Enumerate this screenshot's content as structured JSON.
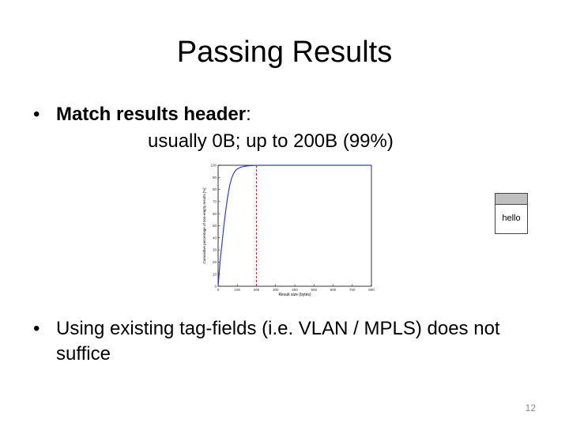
{
  "slide": {
    "title": "Passing Results",
    "bullet_char": "•",
    "bullet1_bold": "Match results header",
    "bullet1_colon": ":",
    "bullet1_detail": "usually 0B; up to 200B (99%)",
    "bullet2": "Using existing tag-fields (i.e. VLAN / MPLS) does not suffice",
    "page_number": "12"
  },
  "note": {
    "label": "hello"
  },
  "chart_data": {
    "type": "line",
    "xlabel": "Result size (bytes)",
    "ylabel": "Cumulative percentage of non-empty results [%]",
    "xlim": [
      0,
      800
    ],
    "ylim": [
      0,
      100
    ],
    "x_ticks": [
      "0",
      "100",
      "200",
      "300",
      "400",
      "500",
      "600",
      "700",
      "800"
    ],
    "y_ticks": [
      "0",
      "10",
      "20",
      "30",
      "40",
      "50",
      "60",
      "70",
      "80",
      "90",
      "100"
    ],
    "series": [
      {
        "color": "#3040c0",
        "x": [
          0,
          5,
          10,
          20,
          30,
          40,
          50,
          60,
          70,
          80,
          90,
          100,
          120,
          140,
          160,
          180,
          200,
          250,
          300,
          400,
          500,
          600,
          700,
          800
        ],
        "y": [
          0,
          10,
          20,
          35,
          50,
          63,
          74,
          83,
          89,
          93,
          95.5,
          97,
          98.5,
          99.2,
          99.6,
          99.8,
          99.9,
          100,
          100,
          100,
          100,
          100,
          100,
          100
        ]
      }
    ],
    "reference_line": {
      "x": 200,
      "color": "#cc2020",
      "style": "dashed"
    },
    "grid": false
  }
}
